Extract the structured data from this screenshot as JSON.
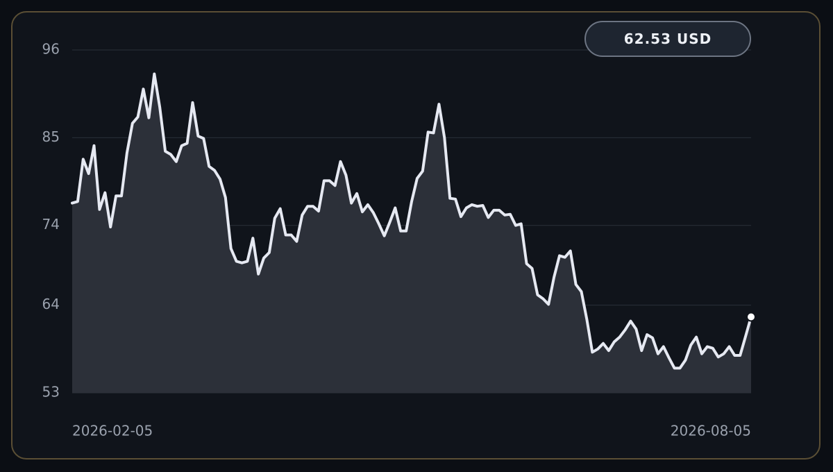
{
  "chart_data": {
    "type": "line",
    "badge": "62.53 USD",
    "xlim": [
      "2026-02-05",
      "2026-08-05"
    ],
    "xticks": [
      "2026-02-05",
      "2026-08-05"
    ],
    "ylim": [
      53,
      96
    ],
    "yticks": [
      53,
      64,
      74,
      85,
      96
    ],
    "grid": true,
    "color": "#e6e9f2",
    "fill": "#2c3039",
    "values": [
      76.8,
      77.0,
      82.3,
      80.5,
      84.0,
      76.0,
      78.1,
      73.8,
      77.7,
      77.7,
      83.1,
      86.8,
      87.6,
      91.1,
      87.5,
      93.0,
      88.8,
      83.3,
      82.9,
      82.0,
      84.0,
      84.3,
      89.4,
      85.2,
      84.9,
      81.4,
      80.9,
      79.8,
      77.5,
      71.1,
      69.5,
      69.3,
      69.5,
      72.4,
      67.9,
      69.9,
      70.6,
      74.9,
      76.1,
      72.8,
      72.8,
      72.0,
      75.3,
      76.4,
      76.4,
      75.8,
      79.6,
      79.6,
      79.0,
      82.0,
      80.3,
      76.8,
      78.0,
      75.7,
      76.6,
      75.6,
      74.2,
      72.7,
      74.4,
      76.2,
      73.3,
      73.3,
      77.0,
      79.9,
      80.8,
      85.7,
      85.6,
      89.2,
      85.0,
      77.4,
      77.3,
      75.1,
      76.2,
      76.6,
      76.4,
      76.5,
      75.0,
      75.9,
      75.9,
      75.3,
      75.4,
      74.0,
      74.2,
      69.2,
      68.6,
      65.3,
      64.8,
      64.1,
      67.5,
      70.2,
      70.0,
      70.8,
      66.6,
      65.7,
      62.2,
      58.1,
      58.5,
      59.2,
      58.3,
      59.4,
      60.0,
      60.9,
      62.0,
      61.0,
      58.3,
      60.3,
      59.9,
      57.9,
      58.8,
      57.4,
      56.1,
      56.1,
      57.1,
      59.0,
      60.0,
      57.9,
      58.8,
      58.6,
      57.5,
      57.9,
      58.8,
      57.7,
      57.7,
      60.1,
      62.53
    ]
  }
}
